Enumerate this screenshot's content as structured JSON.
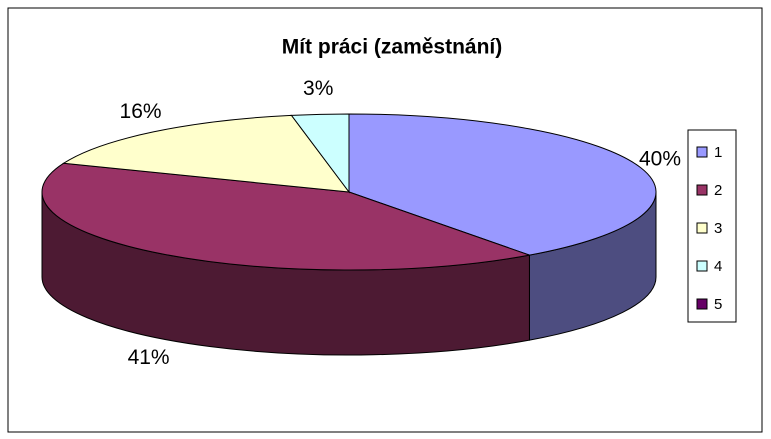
{
  "chart_data": {
    "type": "pie3d",
    "title": "Mít práci (zaměstnání)",
    "categories": [
      "1",
      "2",
      "3",
      "4",
      "5"
    ],
    "values": [
      40,
      41,
      16,
      3,
      0
    ],
    "value_labels": [
      "40%",
      "41%",
      "16%",
      "3%",
      null
    ],
    "colors": [
      "#9999ff",
      "#993366",
      "#ffffcc",
      "#ccffff",
      "#660066"
    ],
    "legend": "right"
  }
}
